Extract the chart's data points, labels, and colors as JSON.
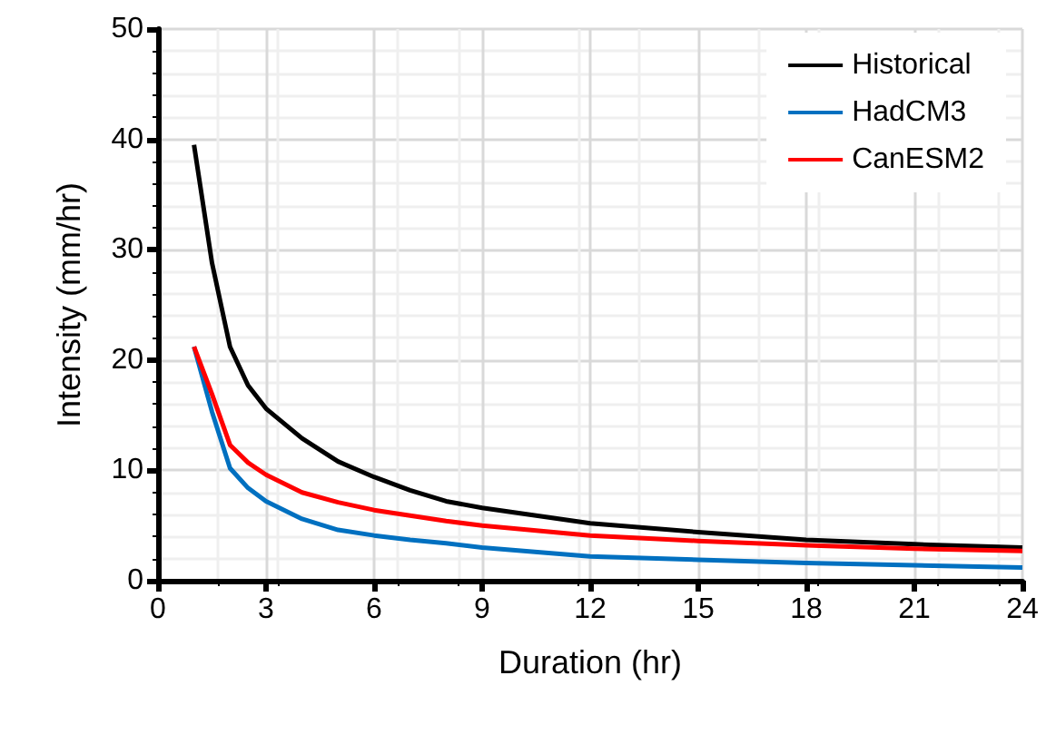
{
  "chart_data": {
    "type": "line",
    "xlabel": "Duration (hr)",
    "ylabel": "Intensity (mm/hr)",
    "xlim": [
      0,
      24
    ],
    "xticks": [
      0,
      3,
      6,
      9,
      12,
      15,
      18,
      21,
      24
    ],
    "ylim": [
      0,
      50
    ],
    "yticks": [
      0,
      10,
      20,
      30,
      40,
      50
    ],
    "grid": true,
    "legend": "top right",
    "marker": "none",
    "line_style": "solid",
    "x": [
      1,
      1.5,
      2,
      2.5,
      3,
      4,
      5,
      6,
      7,
      8,
      9,
      12,
      15,
      18,
      21,
      24
    ],
    "series": [
      {
        "name": "Historical",
        "color": "#000000",
        "values": [
          39.5,
          28.8,
          21.2,
          17.7,
          15.6,
          12.9,
          10.8,
          9.4,
          8.2,
          7.2,
          6.6,
          5.2,
          4.4,
          3.7,
          3.3,
          3.0
        ]
      },
      {
        "name": "HadCM3",
        "color": "#0070c0",
        "values": [
          21.2,
          15.3,
          10.2,
          8.4,
          7.2,
          5.6,
          4.6,
          4.1,
          3.7,
          3.4,
          3.0,
          2.2,
          1.9,
          1.6,
          1.4,
          1.2
        ]
      },
      {
        "name": "CanESM2",
        "color": "#ff0000",
        "values": [
          21.2,
          16.9,
          12.3,
          10.7,
          9.6,
          8.0,
          7.1,
          6.4,
          5.9,
          5.4,
          5.0,
          4.1,
          3.6,
          3.2,
          2.9,
          2.7
        ]
      }
    ]
  }
}
